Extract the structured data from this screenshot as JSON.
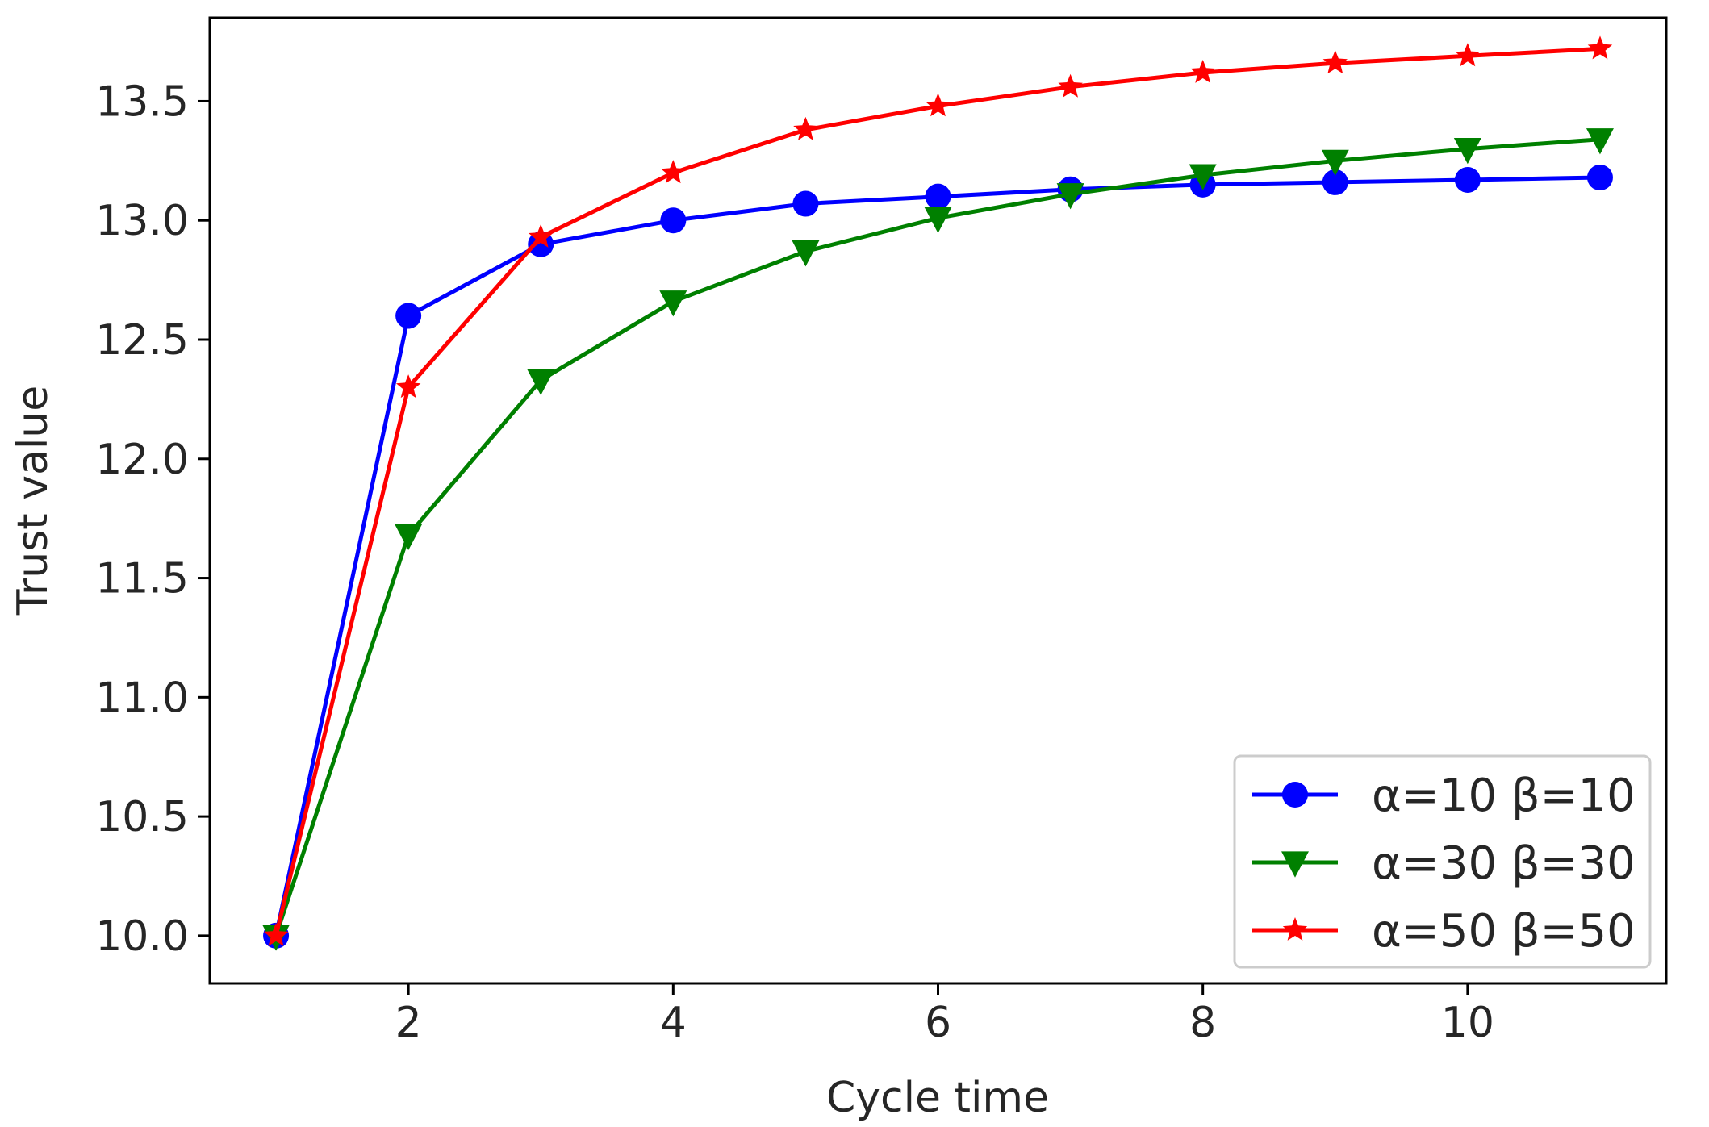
{
  "chart_data": {
    "type": "line",
    "title": "",
    "xlabel": "Cycle time",
    "ylabel": "Trust value",
    "xlim": [
      0.5,
      11.5
    ],
    "ylim": [
      9.8,
      13.85
    ],
    "xticks": [
      2,
      4,
      6,
      8,
      10
    ],
    "xtick_labels": [
      "2",
      "4",
      "6",
      "8",
      "10"
    ],
    "yticks": [
      10.0,
      10.5,
      11.0,
      11.5,
      12.0,
      12.5,
      13.0,
      13.5
    ],
    "ytick_labels": [
      "10.0",
      "10.5",
      "11.0",
      "11.5",
      "12.0",
      "12.5",
      "13.0",
      "13.5"
    ],
    "grid": false,
    "legend_position": "lower-right",
    "x": [
      1,
      2,
      3,
      4,
      5,
      6,
      7,
      8,
      9,
      10,
      11
    ],
    "series": [
      {
        "name": "α=10 β=10",
        "color": "#0000ff",
        "marker": "circle",
        "values": [
          10.0,
          12.6,
          12.9,
          13.0,
          13.07,
          13.1,
          13.13,
          13.15,
          13.16,
          13.17,
          13.18
        ]
      },
      {
        "name": "α=30 β=30",
        "color": "#008000",
        "marker": "triangle-down",
        "values": [
          10.0,
          11.68,
          12.33,
          12.66,
          12.87,
          13.01,
          13.11,
          13.19,
          13.25,
          13.3,
          13.34
        ]
      },
      {
        "name": "α=50 β=50",
        "color": "#ff0000",
        "marker": "star",
        "values": [
          10.0,
          12.3,
          12.93,
          13.2,
          13.38,
          13.48,
          13.56,
          13.62,
          13.66,
          13.69,
          13.72
        ]
      }
    ]
  }
}
